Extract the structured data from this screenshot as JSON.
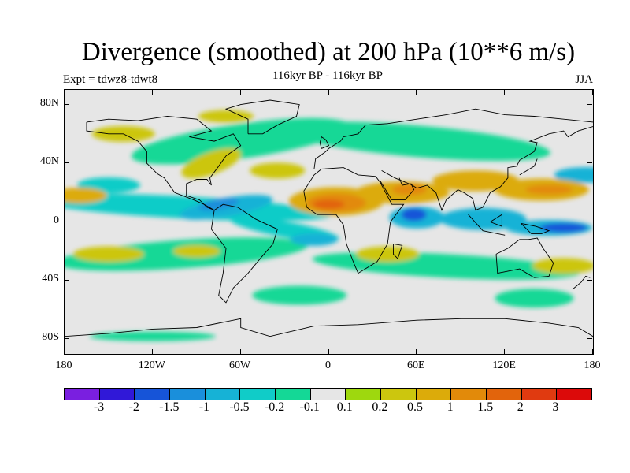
{
  "title": "Divergence (smoothed) at 200 hPa (10**6 m/s)",
  "experiment": "Expt = tdwz8-tdwt8",
  "subtitle": "116kyr BP - 116kyr BP",
  "season": "JJA",
  "chart_data": {
    "type": "heatmap",
    "variable": "Divergence (smoothed) at 200 hPa",
    "units": "10**6 m/s",
    "period": "116kyr BP - 116kyr BP",
    "season": "JJA",
    "x_range": [
      -180,
      180
    ],
    "y_range": [
      -90,
      90
    ],
    "lat_labels": [
      "80N",
      "40N",
      "0",
      "40S",
      "80S"
    ],
    "lon_labels": [
      "180",
      "120W",
      "60W",
      "0",
      "60E",
      "120E",
      "180"
    ],
    "colorbar_labels": [
      "-3",
      "-2",
      "-1.5",
      "-1",
      "-0.5",
      "-0.2",
      "-0.1",
      "0.1",
      "0.2",
      "0.5",
      "1",
      "1.5",
      "2",
      "3"
    ],
    "colors": [
      "#7a1fe0",
      "#3018d8",
      "#1654d8",
      "#1a8fdb",
      "#16b2d6",
      "#10ccc8",
      "#14d896",
      "#e6e6e6",
      "#9ed80e",
      "#ccc60e",
      "#dcab0a",
      "#e28a0a",
      "#e2640c",
      "#e03a10",
      "#dc0a0a"
    ],
    "features": [
      {
        "label": "positive max",
        "lon": 5,
        "lat": 12,
        "value": 1.5
      },
      {
        "label": "positive",
        "lon": 55,
        "lat": 20,
        "value": 1.5
      },
      {
        "label": "positive",
        "lon": 100,
        "lat": 28,
        "value": 1
      },
      {
        "label": "positive",
        "lon": 145,
        "lat": 22,
        "value": 1
      },
      {
        "label": "negative min",
        "lon": 158,
        "lat": -4,
        "value": -2
      },
      {
        "label": "negative",
        "lon": 58,
        "lat": 4,
        "value": -1.5
      },
      {
        "label": "negative",
        "lon": -70,
        "lat": 12,
        "value": -1.5
      },
      {
        "label": "negative",
        "lon": -10,
        "lat": -10,
        "value": -1
      },
      {
        "label": "negative",
        "lon": 100,
        "lat": 5,
        "value": -1
      },
      {
        "label": "positive",
        "lon": 40,
        "lat": -22,
        "value": 0.5
      },
      {
        "label": "positive",
        "lon": -150,
        "lat": -20,
        "value": 0.5
      }
    ]
  }
}
